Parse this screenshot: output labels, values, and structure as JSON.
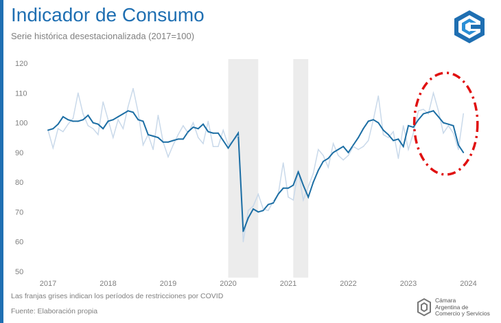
{
  "title": "Indicador de Consumo",
  "subtitle": "Serie histórica desestacionalizada (2017=100)",
  "note": "Las franjas grises indican los períodos de restricciones por COVID",
  "source": "Fuente: Elaboración propia",
  "brand": {
    "line1": "Cámara",
    "line2": "Argentina de",
    "line3": "Comercio y Servicios"
  },
  "colors": {
    "accent": "#1f6fb2",
    "main_series": "#1c6ea4",
    "raw_series": "#c9d9ea",
    "covid_band": "#ececec",
    "highlight": "#e01010"
  },
  "chart_data": {
    "type": "line",
    "title": "Indicador de Consumo",
    "subtitle": "Serie histórica desestacionalizada (2017=100)",
    "xlabel": "",
    "ylabel": "",
    "ylim": [
      50,
      120
    ],
    "yticks": [
      "120",
      "110",
      "100",
      "90",
      "80",
      "70",
      "60",
      "50"
    ],
    "xticks": [
      "2017",
      "2018",
      "2019",
      "2020",
      "2021",
      "2022",
      "2023",
      "2024"
    ],
    "grid": false,
    "legend": "none",
    "x_start": "2017-01",
    "frequency": "monthly",
    "shaded_periods": [
      {
        "start": "2020-01",
        "end": "2020-07"
      },
      {
        "start": "2021-02",
        "end": "2021-05"
      }
    ],
    "highlight": {
      "shape": "ellipse",
      "style": "dash-dot",
      "start": "2023-03",
      "end": "2024-02"
    },
    "series": [
      {
        "values": [
          97.5,
          98,
          99.5,
          102,
          101,
          100.5,
          100.5,
          101,
          102.5,
          100,
          99.5,
          98,
          100.5,
          101,
          102,
          103,
          104,
          103.5,
          101,
          100.5,
          96,
          95.5,
          95,
          93.5,
          93.5,
          94,
          94.5,
          94.5,
          97,
          98.5,
          98,
          99.5,
          97,
          96.5,
          96.5,
          94,
          91.5,
          94,
          96.5,
          63.5,
          68,
          71,
          70,
          70.5,
          72.5,
          73,
          76,
          78,
          78,
          79,
          83.5,
          79,
          75,
          80,
          84,
          87,
          88,
          90,
          91,
          92,
          90,
          92.5,
          95,
          98,
          100.5,
          101,
          100,
          97.5,
          96,
          94,
          94.5,
          92,
          99,
          98.5,
          101,
          103,
          103.5,
          104,
          102,
          100,
          99.5,
          99,
          92.5,
          90
        ]
      },
      {
        "values": [
          97.5,
          91.5,
          98,
          97,
          99.5,
          101.5,
          110,
          103,
          99,
          98,
          96,
          107,
          101,
          95,
          101,
          98,
          105.5,
          111.5,
          103.5,
          92.5,
          96,
          91,
          102.5,
          93.5,
          88.5,
          92.5,
          96,
          99,
          96.5,
          100,
          95,
          93,
          100.5,
          92,
          92,
          97.5,
          92.5,
          94,
          95.5,
          60,
          70.5,
          72,
          76,
          71,
          70.5,
          73.5,
          76,
          86.5,
          75,
          74,
          84,
          74,
          78.5,
          83,
          91,
          89,
          85,
          93,
          89,
          87.5,
          89,
          92,
          91,
          92,
          94,
          101,
          109,
          96,
          95,
          97,
          88,
          99,
          91,
          96.5,
          104,
          104.5,
          103,
          110,
          104,
          96.5,
          99,
          96.5,
          91,
          103
        ]
      }
    ]
  }
}
